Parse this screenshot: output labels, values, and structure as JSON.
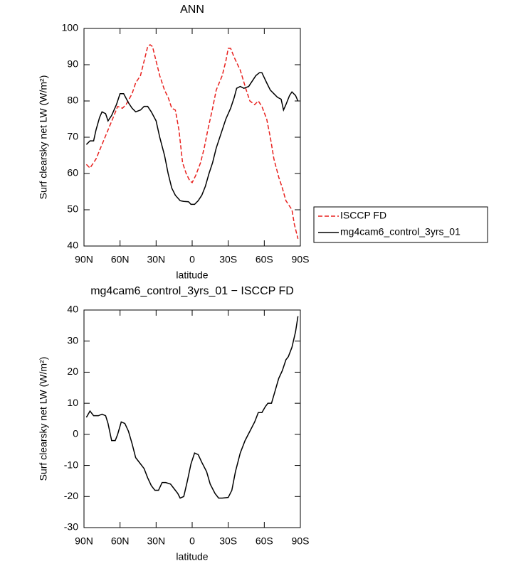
{
  "chart_data": [
    {
      "type": "line",
      "title": "ANN",
      "xlabel": "latitude",
      "ylabel": "Surf clearsky net LW (W/m²)",
      "xlim": [
        90,
        -90
      ],
      "xticks": [
        {
          "value": 90,
          "label": "90N"
        },
        {
          "value": 60,
          "label": "60N"
        },
        {
          "value": 30,
          "label": "30N"
        },
        0,
        {
          "value": -30,
          "label": "30S"
        },
        {
          "value": -60,
          "label": "60S"
        },
        {
          "value": -90,
          "label": "90S"
        }
      ],
      "ylim": [
        40,
        100
      ],
      "yticks": [
        40,
        50,
        60,
        70,
        80,
        90,
        100
      ],
      "legend": "outside-right",
      "series": [
        {
          "name": "ISCCP FD",
          "color": "#e8211e",
          "line_style": "dashed",
          "x": [
            88,
            85,
            80,
            75,
            70,
            65,
            62,
            58,
            55,
            50,
            47,
            43,
            40,
            37,
            35,
            33,
            30,
            27,
            23,
            20,
            17,
            14,
            11,
            8,
            5,
            2,
            0,
            -3,
            -7,
            -10,
            -13,
            -17,
            -20,
            -25,
            -28,
            -30,
            -32,
            -35,
            -40,
            -45,
            -48,
            -52,
            -55,
            -58,
            -62,
            -65,
            -68,
            -72,
            -75,
            -78,
            -80,
            -83,
            -85,
            -88
          ],
          "values": [
            62.5,
            61.5,
            64,
            68,
            72,
            76,
            78.5,
            78,
            79,
            82,
            85,
            87,
            91,
            95,
            95.5,
            95,
            91,
            87,
            83,
            81,
            78,
            77.5,
            72,
            63,
            60,
            58,
            57.5,
            59.5,
            63,
            67,
            72,
            78,
            83,
            87,
            91,
            94.5,
            94.5,
            92,
            88.5,
            83,
            80,
            79,
            80,
            78.5,
            75,
            70,
            64,
            59,
            56,
            52.5,
            51.5,
            50,
            46,
            42
          ]
        },
        {
          "name": "mg4cam6_control_3yrs_01",
          "color": "#000000",
          "line_style": "solid",
          "x": [
            88,
            85,
            82,
            80,
            77,
            75,
            72,
            70,
            67,
            63,
            60,
            57,
            53,
            50,
            47,
            43,
            40,
            37,
            34,
            30,
            27,
            23,
            20,
            17,
            14,
            10,
            7,
            3,
            1,
            -2,
            -5,
            -8,
            -11,
            -14,
            -17,
            -20,
            -25,
            -28,
            -32,
            -35,
            -37,
            -40,
            -43,
            -47,
            -50,
            -53,
            -56,
            -58,
            -62,
            -65,
            -68,
            -71,
            -74,
            -76,
            -78,
            -81,
            -83,
            -86,
            -88
          ],
          "values": [
            68,
            69,
            69,
            72,
            75.5,
            77,
            76.5,
            74.5,
            76,
            79,
            82,
            82,
            79.5,
            78,
            77,
            77.5,
            78.5,
            78.5,
            77,
            74.5,
            70,
            65,
            60,
            56,
            54,
            52.5,
            52.3,
            52.2,
            51.5,
            51.5,
            52.5,
            54,
            56.5,
            60,
            63,
            67,
            72,
            75,
            78,
            81,
            83.5,
            84,
            83.5,
            84,
            85.5,
            87,
            87.8,
            87.8,
            85,
            83,
            82,
            81,
            80.5,
            77.5,
            79,
            81.5,
            82.5,
            81.5,
            80
          ]
        }
      ]
    },
    {
      "type": "line",
      "title": "mg4cam6_control_3yrs_01 − ISCCP FD",
      "xlabel": "latitude",
      "ylabel": "Surf clearsky net LW (W/m²)",
      "xlim": [
        90,
        -90
      ],
      "xticks": [
        {
          "value": 90,
          "label": "90N"
        },
        {
          "value": 60,
          "label": "60N"
        },
        {
          "value": 30,
          "label": "30N"
        },
        0,
        {
          "value": -30,
          "label": "30S"
        },
        {
          "value": -60,
          "label": "60S"
        },
        {
          "value": -90,
          "label": "90S"
        }
      ],
      "ylim": [
        -30,
        40
      ],
      "yticks": [
        -30,
        -20,
        -10,
        0,
        10,
        20,
        30,
        40
      ],
      "color": "#000000",
      "x": [
        88,
        85,
        82,
        78,
        75,
        72,
        70,
        67,
        64,
        62,
        59,
        56,
        53,
        50,
        47,
        43,
        40,
        37,
        34,
        31,
        28,
        25,
        22,
        18,
        15,
        12,
        10,
        7,
        4,
        1,
        -2,
        -5,
        -8,
        -12,
        -15,
        -19,
        -22,
        -25,
        -30,
        -33,
        -36,
        -40,
        -44,
        -48,
        -52,
        -55,
        -58,
        -61,
        -63,
        -66,
        -69,
        -72,
        -75,
        -78,
        -80,
        -83,
        -86,
        -88
      ],
      "values": [
        5.5,
        7.5,
        6,
        6,
        6.5,
        6,
        3.5,
        -2,
        -2,
        0,
        4,
        3.5,
        1,
        -3,
        -7.5,
        -9.5,
        -11,
        -14,
        -16.5,
        -18,
        -18,
        -15.5,
        -15.5,
        -16,
        -17.5,
        -19,
        -20.5,
        -20,
        -15,
        -9.5,
        -6,
        -6.5,
        -9,
        -12,
        -16,
        -19,
        -20.5,
        -20.5,
        -20.3,
        -18,
        -12,
        -6,
        -2,
        1,
        4,
        7,
        7,
        9,
        10,
        10,
        14,
        18,
        20.5,
        24,
        25,
        28,
        33,
        38
      ]
    }
  ]
}
